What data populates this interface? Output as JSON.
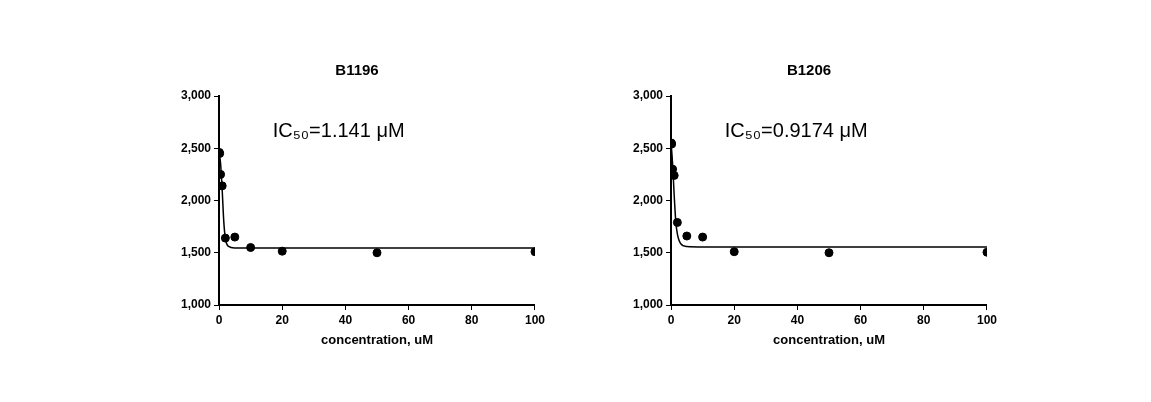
{
  "chart_data": [
    {
      "type": "scatter",
      "title": "B1196",
      "annotation": "IC₅₀=1.141 μM",
      "x_label": "concentration, uM",
      "xlim": [
        0,
        100
      ],
      "xticks": [
        0,
        20,
        40,
        60,
        80,
        100
      ],
      "ylim": [
        1000,
        3000
      ],
      "yticks": [
        1000,
        1500,
        2000,
        2500,
        3000
      ],
      "grid": false,
      "series": [
        {
          "type": "scatter",
          "marker": "circle",
          "color": "#000000",
          "x": [
            0.1,
            0.2,
            0.5,
            1,
            2,
            5,
            10,
            20,
            50,
            100
          ],
          "values": [
            2460,
            2450,
            2250,
            2140,
            1640,
            1650,
            1550,
            1515,
            1500,
            1510
          ]
        },
        {
          "type": "line",
          "line_style": "solid",
          "color": "#000000",
          "x": [
            0,
            0.5,
            1,
            1.5,
            2,
            3,
            5,
            10,
            100
          ],
          "values": [
            2470,
            2350,
            2100,
            1800,
            1640,
            1560,
            1546,
            1545,
            1545
          ]
        }
      ]
    },
    {
      "type": "scatter",
      "title": "B1206",
      "annotation": "IC₅₀=0.9174 μM",
      "x_label": "concentration, uM",
      "xlim": [
        0,
        100
      ],
      "xticks": [
        0,
        20,
        40,
        60,
        80,
        100
      ],
      "ylim": [
        1000,
        3000
      ],
      "yticks": [
        1000,
        1500,
        2000,
        2500,
        3000
      ],
      "grid": false,
      "series": [
        {
          "type": "scatter",
          "marker": "circle",
          "color": "#000000",
          "x": [
            0.1,
            0.2,
            0.5,
            1,
            2,
            5,
            10,
            20,
            50,
            100
          ],
          "values": [
            2550,
            2540,
            2300,
            2240,
            1790,
            1660,
            1650,
            1510,
            1500,
            1505
          ]
        },
        {
          "type": "line",
          "line_style": "solid",
          "color": "#000000",
          "x": [
            0,
            0.5,
            1,
            1.5,
            2,
            3,
            5,
            10,
            100
          ],
          "values": [
            2560,
            2350,
            2050,
            1800,
            1680,
            1590,
            1560,
            1556,
            1556
          ]
        }
      ]
    }
  ]
}
